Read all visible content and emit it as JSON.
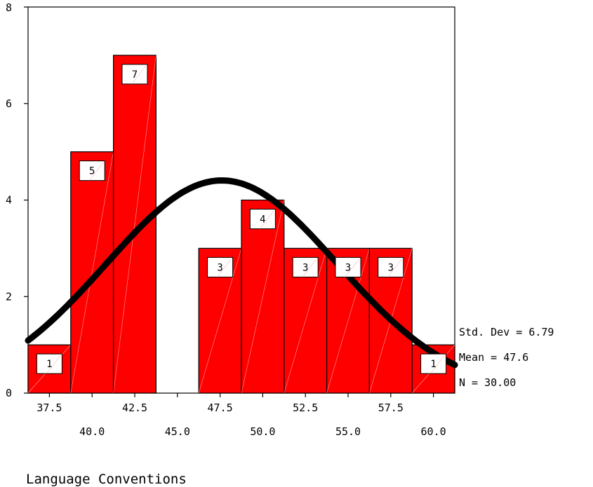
{
  "chart_data": {
    "type": "bar",
    "subtype": "histogram-with-normal-curve",
    "bin_width": 2.5,
    "bins": [
      {
        "center": 37.5,
        "count": 1
      },
      {
        "center": 40.0,
        "count": 5
      },
      {
        "center": 42.5,
        "count": 7
      },
      {
        "center": 45.0,
        "count": 0
      },
      {
        "center": 47.5,
        "count": 3
      },
      {
        "center": 50.0,
        "count": 4
      },
      {
        "center": 52.5,
        "count": 3
      },
      {
        "center": 55.0,
        "count": 3
      },
      {
        "center": 57.5,
        "count": 3
      },
      {
        "center": 60.0,
        "count": 1
      }
    ],
    "x_tick_labels_top": [
      "37.5",
      "42.5",
      "47.5",
      "52.5",
      "57.5"
    ],
    "x_tick_labels_bottom": [
      "40.0",
      "45.0",
      "50.0",
      "55.0",
      "60.0"
    ],
    "y_ticks": [
      "0",
      "2",
      "4",
      "6",
      "8"
    ],
    "ylim": [
      0,
      8
    ],
    "xlabel": "Language Conventions",
    "ylabel": "",
    "title": "",
    "stats": {
      "std_dev": "Std. Dev = 6.79",
      "mean": "Mean = 47.6",
      "n": "N = 30.00"
    },
    "normal_curve": {
      "mean": 47.6,
      "std_dev": 6.79,
      "n": 30
    },
    "bar_color": "#ff0000",
    "curve_color": "#000000",
    "grid": false,
    "legend": "none"
  }
}
